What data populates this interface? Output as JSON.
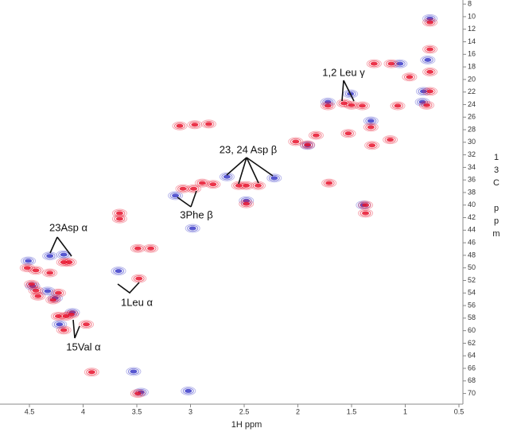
{
  "chart_data": {
    "type": "scatter",
    "x_label": "1H ppm",
    "y_label": "13C ppm",
    "xlim": [
      4.774,
      0.463
    ],
    "ylim": [
      7.6,
      71.7
    ],
    "xticks": [
      4.5,
      4.0,
      3.5,
      3.0,
      2.5,
      2.0,
      1.5,
      1.0,
      0.5
    ],
    "yticks": [
      8,
      10,
      12,
      14,
      16,
      18,
      20,
      22,
      24,
      26,
      28,
      30,
      32,
      34,
      36,
      38,
      40,
      42,
      44,
      46,
      48,
      50,
      52,
      54,
      56,
      58,
      60,
      62,
      64,
      66,
      68,
      70
    ],
    "series": [
      {
        "color": "#3a3ac8",
        "x": [
          0.77,
          0.79,
          0.83,
          0.84,
          1.05,
          1.72,
          1.51,
          1.32,
          1.91,
          1.39,
          2.48,
          2.66,
          2.22,
          3.14,
          2.98,
          3.67,
          4.51,
          4.31,
          4.18,
          4.47,
          4.33,
          4.26,
          4.1,
          4.22,
          3.53,
          3.46,
          3.02
        ],
        "values": [
          10.3,
          16.9,
          21.9,
          23.6,
          17.5,
          23.6,
          22.3,
          26.6,
          30.5,
          40.0,
          39.3,
          35.5,
          35.7,
          38.5,
          43.7,
          50.5,
          48.9,
          48.1,
          47.9,
          52.9,
          53.7,
          54.8,
          57.1,
          59.0,
          66.5,
          69.8,
          69.6
        ]
      },
      {
        "color": "#e8102a",
        "x": [
          0.77,
          0.77,
          0.77,
          0.77,
          0.8,
          0.96,
          1.13,
          1.29,
          1.07,
          1.57,
          1.5,
          1.4,
          1.72,
          1.53,
          1.32,
          1.31,
          1.14,
          1.83,
          1.91,
          2.02,
          1.71,
          1.37,
          1.37,
          2.48,
          2.55,
          2.48,
          2.37,
          2.79,
          2.97,
          3.07,
          2.89,
          3.66,
          3.66,
          2.96,
          3.1,
          2.83,
          3.49,
          3.37,
          3.48,
          4.13,
          4.18,
          4.52,
          4.44,
          4.31,
          4.44,
          4.42,
          4.28,
          4.23,
          4.16,
          3.97,
          4.11,
          4.18,
          3.92,
          3.49,
          4.48,
          4.23
        ],
        "values": [
          10.9,
          15.2,
          18.8,
          21.9,
          24.1,
          19.6,
          17.5,
          17.5,
          24.2,
          23.8,
          24.1,
          24.2,
          24.2,
          28.6,
          27.6,
          30.5,
          29.6,
          28.9,
          30.4,
          29.9,
          36.5,
          40.0,
          41.3,
          39.8,
          36.9,
          36.9,
          36.9,
          36.7,
          37.4,
          37.4,
          36.5,
          42.2,
          41.3,
          27.2,
          27.4,
          27.1,
          46.9,
          46.9,
          51.7,
          49.1,
          49.1,
          50.0,
          50.4,
          50.8,
          53.6,
          54.5,
          55.1,
          57.7,
          57.7,
          59.0,
          57.4,
          59.9,
          66.6,
          70.0,
          52.6,
          54.0
        ]
      }
    ],
    "annotations": [
      "1,2 Leu γ",
      "23, 24 Asp β",
      "3Phe β",
      "23Asp α",
      "1Leu α",
      "15Val α"
    ]
  }
}
